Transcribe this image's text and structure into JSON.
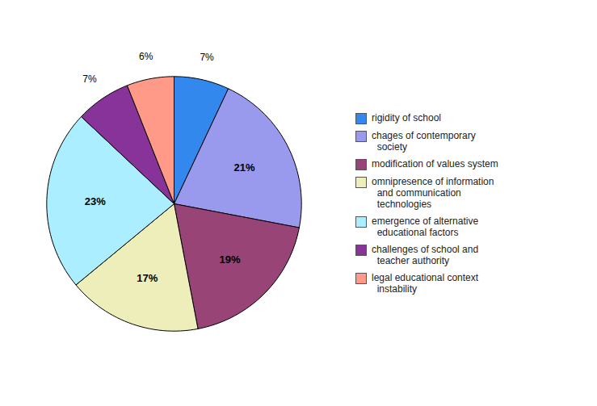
{
  "chart_data": {
    "type": "pie",
    "categories": [
      "rigidity of school",
      "chages of contemporary\n  society",
      "modification of values system",
      "omnipresence of information\n  and communication\n  technologies",
      "emergence of alternative\n  educational factors",
      "challenges of school and\n  teacher authority",
      "legal educational context\n  instability"
    ],
    "values": [
      7,
      21,
      19,
      17,
      23,
      7,
      6
    ],
    "value_labels": [
      "7%",
      "21%",
      "19%",
      "17%",
      "23%",
      "7%",
      "6%"
    ],
    "colors": [
      "#3388ee",
      "#9999ee",
      "#994477",
      "#eeeebb",
      "#aaeeff",
      "#883399",
      "#ff9988"
    ],
    "data_labels": true,
    "legend": "right"
  }
}
